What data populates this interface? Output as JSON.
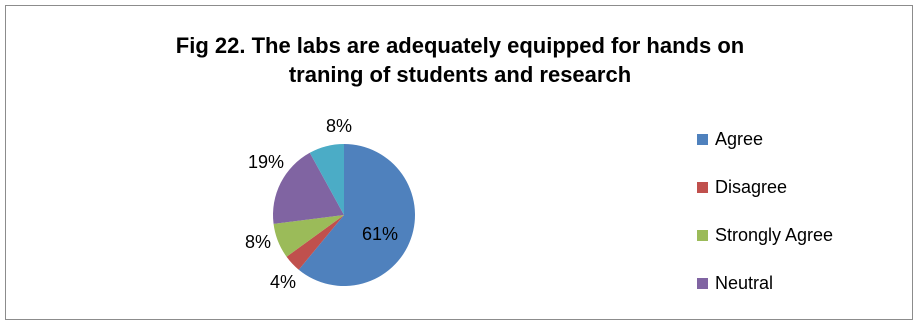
{
  "chart_data": {
    "type": "pie",
    "title": "Fig 22. The labs are adequately equipped for hands on traning of students and research",
    "title_lines": [
      "Fig 22. The labs are adequately equipped for hands on",
      "traning of students and research"
    ],
    "categories": [
      "Agree",
      "Disagree",
      "Strongly Agree",
      "Neutral",
      ""
    ],
    "values": [
      61,
      4,
      8,
      19,
      8
    ],
    "data_labels": [
      "61%",
      "4%",
      "8%",
      "19%",
      "8%"
    ],
    "colors": [
      "#4f81bd",
      "#c0504d",
      "#9bbb59",
      "#8064a2",
      "#4bacc6"
    ],
    "legend": {
      "placement": "right",
      "entries": [
        "Agree",
        "Disagree",
        "Strongly Agree",
        "Neutral"
      ]
    }
  }
}
